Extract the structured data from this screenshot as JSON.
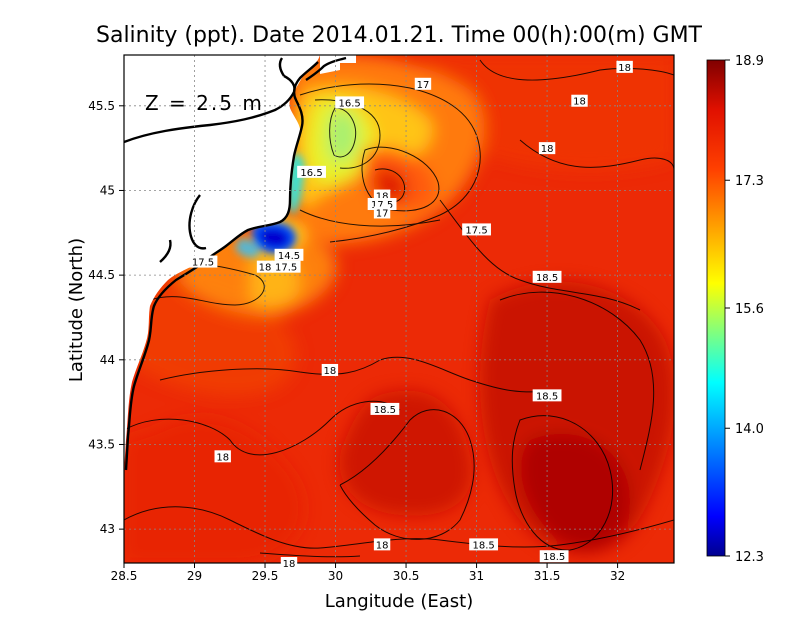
{
  "chart_data": {
    "type": "heatmap",
    "title": "Salinity (ppt). Date 2014.01.21. Time 00(h):00(m) GMT",
    "xlabel": "Langitude (East)",
    "ylabel": "Latitude (North)",
    "xlim": [
      28.5,
      32.4
    ],
    "ylim": [
      42.8,
      45.8
    ],
    "x_ticks": [
      "28.5",
      "29",
      "29.5",
      "30",
      "30.5",
      "31",
      "31.5",
      "32"
    ],
    "y_ticks": [
      "43",
      "43.5",
      "44",
      "44.5",
      "45",
      "45.5"
    ],
    "grid": true,
    "annotation": "Z = 2.5 m",
    "colorbar": {
      "min": 12.3,
      "max": 18.9,
      "ticks": [
        "12.3",
        "14.0",
        "15.6",
        "17.3",
        "18.9"
      ],
      "colormap": [
        "#00008f",
        "#0000ff",
        "#00ffff",
        "#ffff00",
        "#ff0000",
        "#800000"
      ]
    },
    "contour_labels": [
      {
        "text": "17",
        "lon": 30.62,
        "lat": 45.63
      },
      {
        "text": "18",
        "lon": 32.05,
        "lat": 45.73
      },
      {
        "text": "18",
        "lon": 31.73,
        "lat": 45.53
      },
      {
        "text": "16.5",
        "lon": 30.1,
        "lat": 45.52
      },
      {
        "text": "18",
        "lon": 31.5,
        "lat": 45.25
      },
      {
        "text": "16.5",
        "lon": 29.83,
        "lat": 45.11
      },
      {
        "text": "18",
        "lon": 30.33,
        "lat": 44.97
      },
      {
        "text": "17.5",
        "lon": 30.33,
        "lat": 44.92
      },
      {
        "text": "17",
        "lon": 30.33,
        "lat": 44.87
      },
      {
        "text": "17.5",
        "lon": 31.0,
        "lat": 44.77
      },
      {
        "text": "14.5",
        "lon": 29.67,
        "lat": 44.62
      },
      {
        "text": "17.5",
        "lon": 29.65,
        "lat": 44.55
      },
      {
        "text": "17.5",
        "lon": 29.06,
        "lat": 44.58
      },
      {
        "text": "18",
        "lon": 29.5,
        "lat": 44.55
      },
      {
        "text": "18.5",
        "lon": 31.5,
        "lat": 44.49
      },
      {
        "text": "18",
        "lon": 29.96,
        "lat": 43.94
      },
      {
        "text": "18.5",
        "lon": 30.35,
        "lat": 43.71
      },
      {
        "text": "18.5",
        "lon": 31.5,
        "lat": 43.79
      },
      {
        "text": "18",
        "lon": 29.2,
        "lat": 43.43
      },
      {
        "text": "18",
        "lon": 30.33,
        "lat": 42.91
      },
      {
        "text": "18.5",
        "lon": 31.05,
        "lat": 42.91
      },
      {
        "text": "18.5",
        "lon": 31.55,
        "lat": 42.84
      },
      {
        "text": "18",
        "lon": 29.67,
        "lat": 42.8
      }
    ],
    "salinity_features": [
      {
        "lon": 30.05,
        "lat": 45.5,
        "value": 15.9
      },
      {
        "lon": 29.9,
        "lat": 45.3,
        "value": 16.4
      },
      {
        "lon": 29.7,
        "lat": 44.78,
        "value": 12.5
      },
      {
        "lon": 30.25,
        "lat": 45.0,
        "value": 17.9
      },
      {
        "lon": 29.6,
        "lat": 44.9,
        "value": 17.0
      },
      {
        "lon": 31.3,
        "lat": 44.05,
        "value": 18.75
      },
      {
        "lon": 31.7,
        "lat": 43.3,
        "value": 18.8
      },
      {
        "lon": 30.4,
        "lat": 43.35,
        "value": 18.7
      },
      {
        "lon": 29.3,
        "lat": 44.0,
        "value": 18.2
      }
    ]
  }
}
